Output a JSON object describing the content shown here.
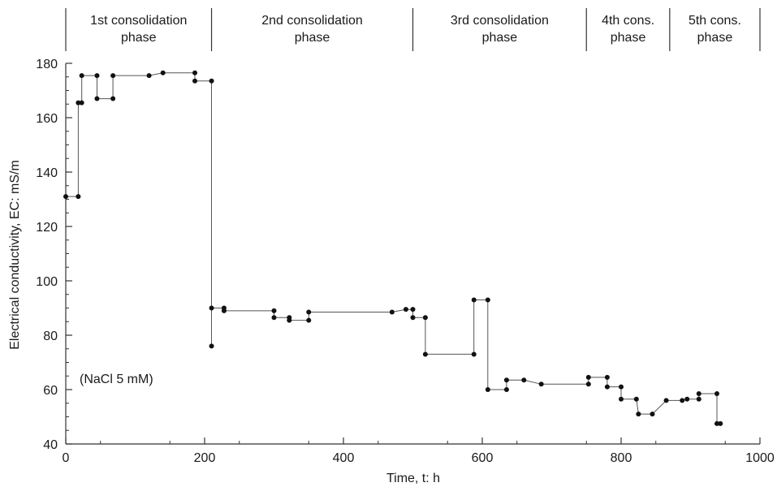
{
  "chart_data": {
    "type": "line",
    "title": "",
    "xlabel": "Time, t: h",
    "ylabel": "Electrical conductivity, EC: mS/m",
    "xlim": [
      0,
      1000
    ],
    "ylim": [
      40,
      180
    ],
    "xticks": [
      0,
      200,
      400,
      600,
      800,
      1000
    ],
    "yticks": [
      40,
      60,
      80,
      100,
      120,
      140,
      160,
      180
    ],
    "grid": false,
    "line_style": "step",
    "annotation": "(NaCl 5 mM)",
    "phases": [
      {
        "label_line1": "1st consolidation",
        "label_line2": "phase",
        "start": 0,
        "end": 210
      },
      {
        "label_line1": "2nd consolidation",
        "label_line2": "phase",
        "start": 210,
        "end": 500
      },
      {
        "label_line1": "3rd consolidation",
        "label_line2": "phase",
        "start": 500,
        "end": 750
      },
      {
        "label_line1": "4th cons.",
        "label_line2": "phase",
        "start": 750,
        "end": 870
      },
      {
        "label_line1": "5th cons.",
        "label_line2": "phase",
        "start": 870,
        "end": 1000
      }
    ],
    "series": [
      {
        "points": [
          [
            0,
            131
          ],
          [
            18,
            131
          ],
          [
            18,
            165.5
          ],
          [
            23,
            165.5
          ],
          [
            23,
            175.5
          ],
          [
            45,
            175.5
          ],
          [
            45,
            167
          ],
          [
            68,
            167
          ],
          [
            68,
            175.5
          ],
          [
            120,
            175.5
          ],
          [
            140,
            176.5
          ],
          [
            186,
            176.5
          ],
          [
            186,
            173.5
          ],
          [
            210,
            173.5
          ],
          [
            210,
            90
          ],
          [
            210,
            76
          ],
          [
            210,
            90
          ],
          [
            228,
            90
          ],
          [
            228,
            89
          ],
          [
            300,
            89
          ],
          [
            300,
            86.5
          ],
          [
            322,
            86.5
          ],
          [
            322,
            86
          ],
          [
            322,
            85.5
          ],
          [
            350,
            85.5
          ],
          [
            350,
            88.5
          ],
          [
            470,
            88.5
          ],
          [
            490,
            89.5
          ],
          [
            500,
            89.5
          ],
          [
            500,
            86.5
          ],
          [
            518,
            86.5
          ],
          [
            518,
            73
          ],
          [
            588,
            73
          ],
          [
            588,
            93
          ],
          [
            608,
            93
          ],
          [
            608,
            60
          ],
          [
            635,
            60
          ],
          [
            635,
            63.5
          ],
          [
            660,
            63.5
          ],
          [
            685,
            62
          ],
          [
            753,
            62
          ],
          [
            753,
            64.5
          ],
          [
            780,
            64.5
          ],
          [
            780,
            61
          ],
          [
            800,
            61
          ],
          [
            800,
            56.5
          ],
          [
            822,
            56.5
          ],
          [
            825,
            51
          ],
          [
            845,
            51
          ],
          [
            865,
            56
          ],
          [
            888,
            56
          ],
          [
            895,
            56.5
          ],
          [
            912,
            56.5
          ],
          [
            912,
            58.5
          ],
          [
            938,
            58.5
          ],
          [
            938,
            47.5
          ],
          [
            943,
            47.5
          ]
        ],
        "markers": [
          [
            0,
            131
          ],
          [
            18,
            131
          ],
          [
            18,
            165.5
          ],
          [
            23,
            165.5
          ],
          [
            23,
            175.5
          ],
          [
            45,
            175.5
          ],
          [
            45,
            167
          ],
          [
            68,
            167
          ],
          [
            68,
            175.5
          ],
          [
            120,
            175.5
          ],
          [
            140,
            176.5
          ],
          [
            186,
            176.5
          ],
          [
            186,
            173.5
          ],
          [
            210,
            173.5
          ],
          [
            210,
            90
          ],
          [
            210,
            76
          ],
          [
            228,
            90
          ],
          [
            228,
            89
          ],
          [
            300,
            89
          ],
          [
            300,
            86.5
          ],
          [
            322,
            86.5
          ],
          [
            322,
            85.5
          ],
          [
            350,
            85.5
          ],
          [
            350,
            88.5
          ],
          [
            470,
            88.5
          ],
          [
            490,
            89.5
          ],
          [
            500,
            89.5
          ],
          [
            500,
            86.5
          ],
          [
            518,
            86.5
          ],
          [
            518,
            73
          ],
          [
            588,
            73
          ],
          [
            588,
            93
          ],
          [
            608,
            93
          ],
          [
            608,
            60
          ],
          [
            635,
            60
          ],
          [
            635,
            63.5
          ],
          [
            660,
            63.5
          ],
          [
            685,
            62
          ],
          [
            753,
            62
          ],
          [
            753,
            64.5
          ],
          [
            780,
            64.5
          ],
          [
            780,
            61
          ],
          [
            800,
            61
          ],
          [
            800,
            56.5
          ],
          [
            822,
            56.5
          ],
          [
            825,
            51
          ],
          [
            845,
            51
          ],
          [
            865,
            56
          ],
          [
            888,
            56
          ],
          [
            895,
            56.5
          ],
          [
            912,
            56.5
          ],
          [
            912,
            58.5
          ],
          [
            938,
            58.5
          ],
          [
            938,
            47.5
          ],
          [
            943,
            47.5
          ]
        ]
      }
    ]
  }
}
